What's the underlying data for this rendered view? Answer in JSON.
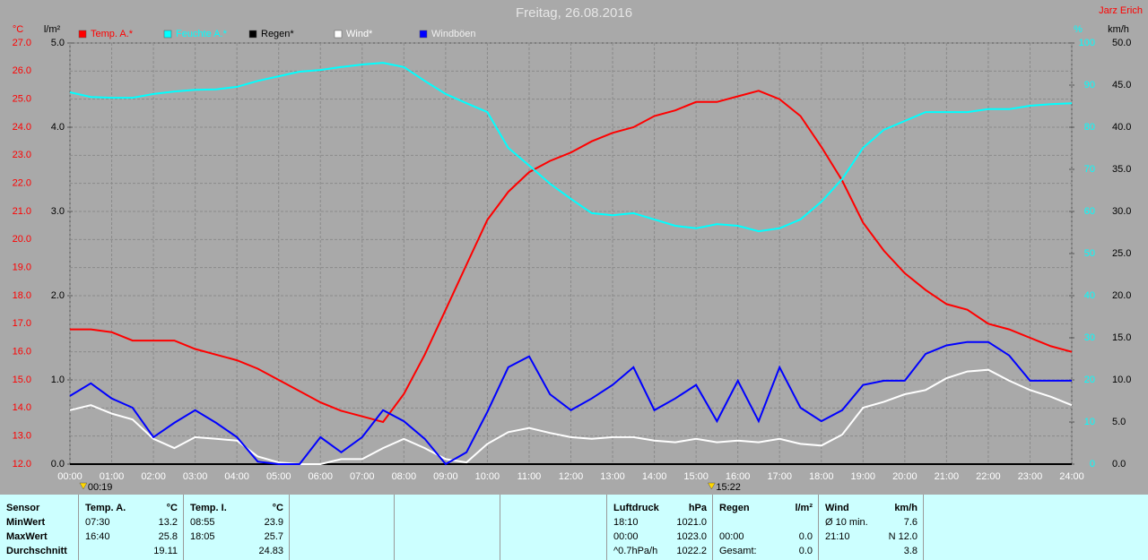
{
  "chart_data": {
    "type": "line",
    "title": "Freitag, 26.08.2016",
    "author": "Jarz Erich",
    "ylabel": "°C",
    "y3label": "l/m²",
    "y2label": "%",
    "y4label": "km/h",
    "grid": true,
    "x": [
      0,
      0.5,
      1,
      1.5,
      2,
      2.5,
      3,
      3.5,
      4,
      4.5,
      5,
      5.5,
      6,
      6.5,
      7,
      7.5,
      8,
      8.5,
      9,
      9.5,
      10,
      10.5,
      11,
      11.5,
      12,
      12.5,
      13,
      13.5,
      14,
      14.5,
      15,
      15.5,
      16,
      16.5,
      17,
      17.5,
      18,
      18.5,
      19,
      19.5,
      20,
      20.5,
      21,
      21.5,
      22,
      22.5,
      23,
      23.5,
      24
    ],
    "xlim": [
      0,
      24
    ],
    "xticks": [
      {
        "value": 0,
        "label": "00:00"
      },
      {
        "value": 1,
        "label": "01:00"
      },
      {
        "value": 2,
        "label": "02:00"
      },
      {
        "value": 3,
        "label": "03:00"
      },
      {
        "value": 4,
        "label": "04:00"
      },
      {
        "value": 5,
        "label": "05:00"
      },
      {
        "value": 6,
        "label": "06:00"
      },
      {
        "value": 7,
        "label": "07:00"
      },
      {
        "value": 8,
        "label": "08:00"
      },
      {
        "value": 9,
        "label": "09:00"
      },
      {
        "value": 10,
        "label": "10:00"
      },
      {
        "value": 11,
        "label": "11:00"
      },
      {
        "value": 12,
        "label": "12:00"
      },
      {
        "value": 13,
        "label": "13:00"
      },
      {
        "value": 14,
        "label": "14:00"
      },
      {
        "value": 15,
        "label": "15:00"
      },
      {
        "value": 16,
        "label": "16:00"
      },
      {
        "value": 17,
        "label": "17:00"
      },
      {
        "value": 18,
        "label": "18:00"
      },
      {
        "value": 19,
        "label": "19:00"
      },
      {
        "value": 20,
        "label": "20:00"
      },
      {
        "value": 21,
        "label": "21:00"
      },
      {
        "value": 22,
        "label": "22:00"
      },
      {
        "value": 23,
        "label": "23:00"
      },
      {
        "value": 24,
        "label": "24:00"
      }
    ],
    "ylim": [
      12,
      27
    ],
    "yticks": [
      {
        "value": 12,
        "label": "12.0"
      },
      {
        "value": 13,
        "label": "13.0"
      },
      {
        "value": 14,
        "label": "14.0"
      },
      {
        "value": 15,
        "label": "15.0"
      },
      {
        "value": 16,
        "label": "16.0"
      },
      {
        "value": 17,
        "label": "17.0"
      },
      {
        "value": 18,
        "label": "18.0"
      },
      {
        "value": 19,
        "label": "19.0"
      },
      {
        "value": 20,
        "label": "20.0"
      },
      {
        "value": 21,
        "label": "21.0"
      },
      {
        "value": 22,
        "label": "22.0"
      },
      {
        "value": 23,
        "label": "23.0"
      },
      {
        "value": 24,
        "label": "24.0"
      },
      {
        "value": 25,
        "label": "25.0"
      },
      {
        "value": 26,
        "label": "26.0"
      },
      {
        "value": 27,
        "label": "27.0"
      }
    ],
    "y3lim": [
      0,
      5
    ],
    "y3ticks": [
      {
        "value": 0,
        "label": "0.0"
      },
      {
        "value": 1,
        "label": "1.0"
      },
      {
        "value": 2,
        "label": "2.0"
      },
      {
        "value": 3,
        "label": "3.0"
      },
      {
        "value": 4,
        "label": "4.0"
      },
      {
        "value": 5,
        "label": "5.0"
      }
    ],
    "y2lim": [
      0,
      100
    ],
    "y2ticks": [
      0,
      10,
      20,
      30,
      40,
      50,
      60,
      70,
      80,
      90,
      100
    ],
    "y4lim": [
      0,
      50
    ],
    "y4ticks": [
      {
        "value": 0,
        "label": "0.0"
      },
      {
        "value": 5,
        "label": "5.0"
      },
      {
        "value": 10,
        "label": "10.0"
      },
      {
        "value": 15,
        "label": "15.0"
      },
      {
        "value": 20,
        "label": "20.0"
      },
      {
        "value": 25,
        "label": "25.0"
      },
      {
        "value": 30,
        "label": "30.0"
      },
      {
        "value": 35,
        "label": "35.0"
      },
      {
        "value": 40,
        "label": "40.0"
      },
      {
        "value": 45,
        "label": "45.0"
      },
      {
        "value": 50,
        "label": "50.0"
      }
    ],
    "series": [
      {
        "name": "Temp. A.*",
        "color": "#ff0000",
        "axis": "y",
        "values": [
          16.8,
          16.8,
          16.7,
          16.4,
          16.4,
          16.4,
          16.1,
          15.9,
          15.7,
          15.4,
          15.0,
          14.6,
          14.2,
          13.9,
          13.7,
          13.5,
          14.5,
          15.9,
          17.5,
          19.1,
          20.7,
          21.7,
          22.4,
          22.8,
          23.1,
          23.5,
          23.8,
          24.0,
          24.4,
          24.6,
          24.9,
          24.9,
          25.1,
          25.3,
          25.0,
          24.4,
          23.3,
          22.1,
          20.6,
          19.6,
          18.8,
          18.2,
          17.7,
          17.5,
          17.0,
          16.8,
          16.5,
          16.2,
          16.0
        ]
      },
      {
        "name": "Feuchte A.*",
        "color": "#00ffff",
        "axis": "y2",
        "values": [
          88.3,
          87.2,
          87.0,
          87.0,
          87.9,
          88.5,
          88.9,
          89.0,
          89.6,
          91.0,
          92.1,
          93.2,
          93.6,
          94.3,
          94.9,
          95.3,
          94.3,
          91.0,
          87.9,
          85.7,
          83.6,
          75.1,
          70.9,
          66.6,
          63.0,
          59.6,
          59.1,
          59.6,
          58.1,
          56.6,
          56.0,
          57.0,
          56.6,
          55.3,
          56.0,
          58.1,
          62.3,
          67.7,
          75.1,
          79.4,
          81.5,
          83.6,
          83.6,
          83.6,
          84.3,
          84.3,
          85.1,
          85.5,
          85.7
        ]
      },
      {
        "name": "Regen*",
        "color": "#000000",
        "axis": "y3",
        "values": [
          0,
          0,
          0,
          0,
          0,
          0,
          0,
          0,
          0,
          0,
          0,
          0,
          0,
          0,
          0,
          0,
          0,
          0,
          0,
          0,
          0,
          0,
          0,
          0,
          0,
          0,
          0,
          0,
          0,
          0,
          0,
          0,
          0,
          0,
          0,
          0,
          0,
          0,
          0,
          0,
          0,
          0,
          0,
          0,
          0,
          0,
          0,
          0,
          0
        ]
      },
      {
        "name": "Wind*",
        "color": "#ffffff",
        "axis": "y4",
        "values": [
          6.4,
          7.0,
          6.0,
          5.3,
          3.0,
          1.9,
          3.2,
          3.0,
          2.8,
          0.9,
          0.2,
          0,
          0,
          0.6,
          0.6,
          1.9,
          3.0,
          1.9,
          0.6,
          0.2,
          2.4,
          3.8,
          4.3,
          3.7,
          3.2,
          3.0,
          3.2,
          3.2,
          2.8,
          2.6,
          3.0,
          2.6,
          2.8,
          2.6,
          3.0,
          2.4,
          2.2,
          3.5,
          6.7,
          7.4,
          8.3,
          8.8,
          10.2,
          11.0,
          11.2,
          9.9,
          8.8,
          8.0,
          7.0
        ]
      },
      {
        "name": "Windböen",
        "color": "#0000ff",
        "axis": "y4",
        "values": [
          8.1,
          9.6,
          7.8,
          6.7,
          3.2,
          4.9,
          6.4,
          4.9,
          3.2,
          0.3,
          0,
          0,
          3.2,
          1.4,
          3.2,
          6.4,
          5.1,
          3.0,
          0,
          1.4,
          6.2,
          11.5,
          12.8,
          8.3,
          6.4,
          7.8,
          9.4,
          11.5,
          6.4,
          7.8,
          9.4,
          5.1,
          9.9,
          5.1,
          11.5,
          6.7,
          5.1,
          6.4,
          9.4,
          9.9,
          9.9,
          13.1,
          14.1,
          14.5,
          14.5,
          12.9,
          9.9,
          9.9,
          9.9
        ]
      }
    ],
    "annotations": [
      {
        "x": 0.32,
        "label": "00:19"
      },
      {
        "x": 15.37,
        "label": "15:22"
      }
    ]
  },
  "table": {
    "header": "Sensor",
    "row_labels": [
      "MinWert",
      "MaxWert",
      "Durchschnitt"
    ],
    "groups": [
      {
        "name": "Temp. A.",
        "unit": "°C",
        "rows": [
          {
            "time": "07:30",
            "value": "13.2"
          },
          {
            "time": "16:40",
            "value": "25.8"
          },
          {
            "value": "19.11"
          }
        ]
      },
      {
        "name": "Temp. I.",
        "unit": "°C",
        "rows": [
          {
            "time": "08:55",
            "value": "23.9"
          },
          {
            "time": "18:05",
            "value": "25.7"
          },
          {
            "value": "24.83"
          }
        ]
      },
      {
        "name": "Luftdruck",
        "unit": "hPa",
        "rows": [
          {
            "time": "18:10",
            "value": "1021.0"
          },
          {
            "time": "00:00",
            "value": "1023.0"
          },
          {
            "time": "^0.7hPa/h",
            "value": "1022.2"
          }
        ]
      },
      {
        "name": "Regen",
        "unit": "l/m²",
        "rows": [
          {},
          {
            "time": "00:00",
            "value": "0.0"
          },
          {
            "time": "Gesamt:",
            "value": "0.0"
          }
        ]
      },
      {
        "name": "Wind",
        "unit": "km/h",
        "rows": [
          {
            "time": "Ø 10 min.",
            "value": "7.6"
          },
          {
            "time": "21:10",
            "value": "N 12.0"
          },
          {
            "value": "3.8"
          }
        ]
      }
    ]
  }
}
